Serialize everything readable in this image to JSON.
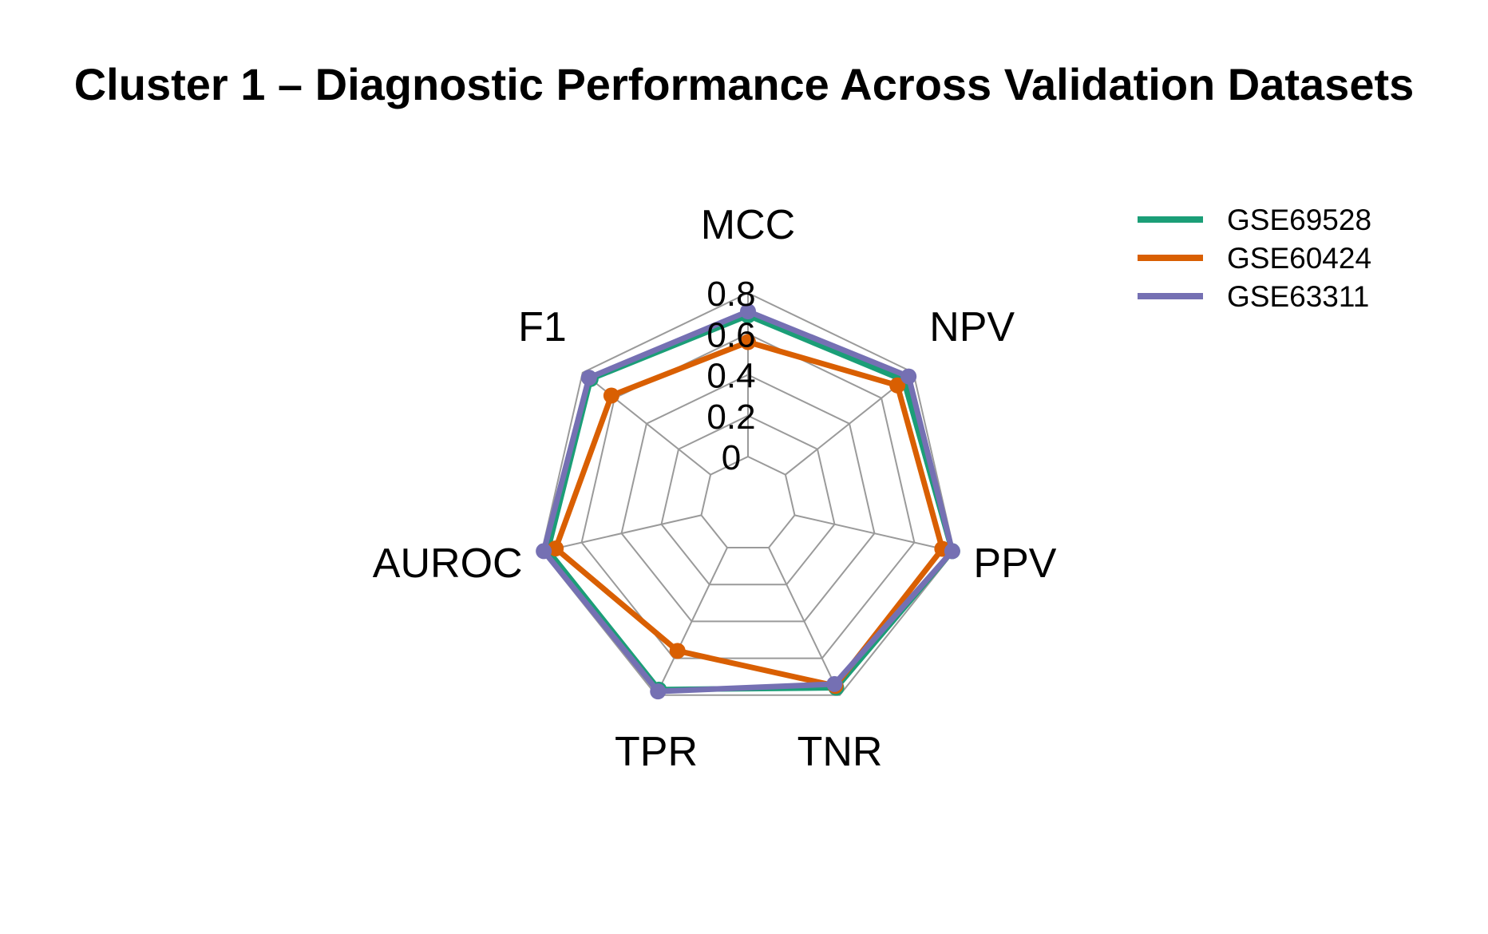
{
  "chart_data": {
    "type": "radar",
    "title": "Cluster 1 – Diagnostic Performance Across Validation Datasets",
    "axes": [
      "MCC",
      "NPV",
      "PPV",
      "TNR",
      "TPR",
      "AUROC",
      "F1"
    ],
    "ticks": [
      "0",
      "0.2",
      "0.4",
      "0.6",
      "0.8"
    ],
    "range": [
      0,
      0.8
    ],
    "grid": true,
    "legend_position": "top-right",
    "series": [
      {
        "name": "GSE69528",
        "color": "#1b9e77",
        "values": [
          0.69,
          0.74,
          0.79,
          0.76,
          0.77,
          0.77,
          0.75
        ]
      },
      {
        "name": "GSE60424",
        "color": "#d95f02",
        "values": [
          0.56,
          0.7,
          0.74,
          0.75,
          0.56,
          0.73,
          0.62
        ]
      },
      {
        "name": "GSE63311",
        "color": "#7570b3",
        "values": [
          0.71,
          0.77,
          0.79,
          0.74,
          0.78,
          0.79,
          0.76
        ]
      }
    ]
  }
}
